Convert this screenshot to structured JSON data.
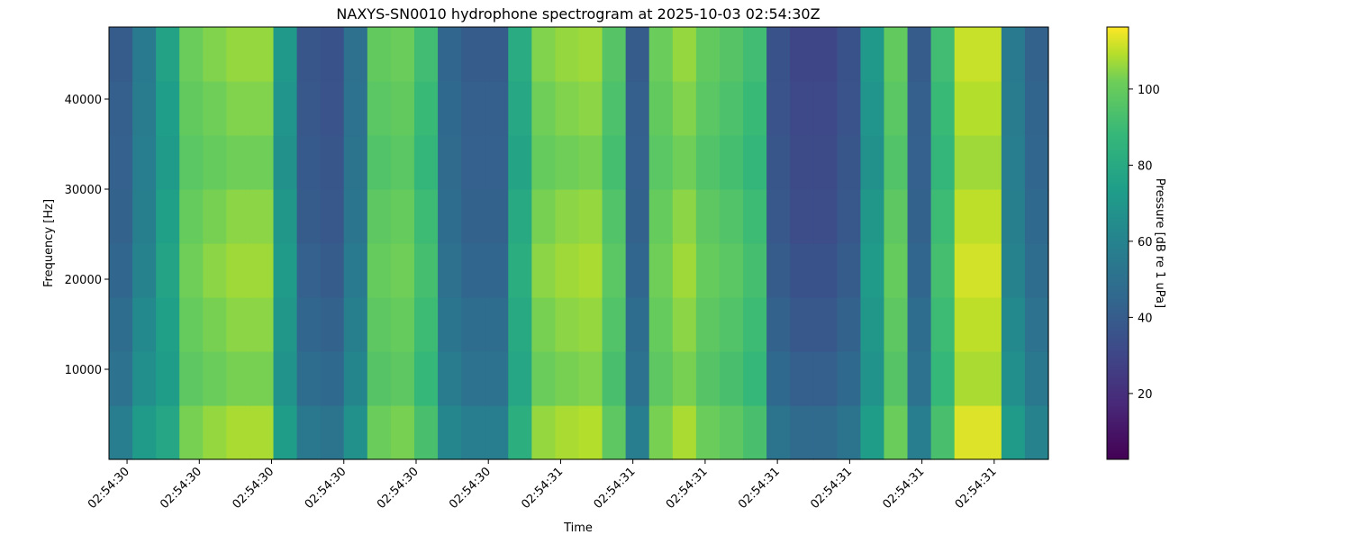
{
  "chart_data": {
    "type": "heatmap",
    "title": "NAXYS-SN0010 hydrophone spectrogram at 2025-10-03 02:54:30Z",
    "xlabel": "Time",
    "ylabel": "Frequency [Hz]",
    "colorbar_label": "Pressure [dB re 1 uPa]",
    "colormap": "viridis",
    "x": [
      30.425,
      30.4575,
      30.49,
      30.5225,
      30.555,
      30.5875,
      30.62,
      30.6525,
      30.685,
      30.7175,
      30.75,
      30.7825,
      30.815,
      30.8475,
      30.88,
      30.9125,
      30.945,
      30.9775,
      31.01,
      31.0425,
      31.075,
      31.1075,
      31.14,
      31.1725,
      31.205,
      31.2375,
      31.27,
      31.3025,
      31.335,
      31.3675,
      31.4,
      31.4325,
      31.465,
      31.4975,
      31.53,
      31.5625,
      31.595,
      31.6275,
      31.66,
      31.6925,
      31.725
    ],
    "y": [
      0,
      6000,
      12000,
      18000,
      24000,
      30000,
      36000,
      42000,
      48000
    ],
    "z": [
      [
        57,
        72,
        78,
        103,
        106,
        108,
        108,
        73,
        54,
        52,
        67,
        101,
        103,
        93,
        62,
        57,
        57,
        83,
        106,
        108,
        109,
        98,
        57,
        103,
        108,
        101,
        98,
        93,
        52,
        47,
        47,
        52,
        73,
        101,
        57,
        93,
        113,
        113,
        72,
        60
      ],
      [
        51,
        66,
        73,
        98,
        101,
        103,
        103,
        68,
        48,
        46,
        61,
        96,
        98,
        88,
        56,
        51,
        51,
        78,
        101,
        103,
        104,
        93,
        51,
        98,
        103,
        96,
        93,
        88,
        46,
        41,
        41,
        46,
        68,
        96,
        51,
        88,
        108,
        108,
        66,
        54
      ],
      [
        48,
        63,
        75,
        100,
        103,
        105,
        105,
        70,
        45,
        43,
        58,
        98,
        100,
        90,
        53,
        48,
        48,
        80,
        103,
        105,
        106,
        95,
        48,
        100,
        105,
        98,
        95,
        90,
        43,
        38,
        38,
        43,
        70,
        98,
        48,
        90,
        110,
        110,
        63,
        51
      ],
      [
        45,
        60,
        77,
        102,
        105,
        107,
        107,
        72,
        42,
        40,
        55,
        100,
        102,
        92,
        50,
        45,
        45,
        82,
        105,
        107,
        108,
        97,
        45,
        102,
        107,
        100,
        97,
        92,
        40,
        35,
        35,
        40,
        72,
        100,
        45,
        92,
        112,
        112,
        60,
        48
      ],
      [
        43,
        58,
        75,
        100,
        103,
        105,
        105,
        70,
        40,
        38,
        53,
        98,
        100,
        90,
        48,
        43,
        43,
        80,
        103,
        105,
        106,
        95,
        43,
        100,
        105,
        98,
        95,
        90,
        38,
        33,
        33,
        38,
        70,
        98,
        43,
        90,
        110,
        110,
        58,
        46
      ],
      [
        42,
        57,
        72,
        97,
        100,
        102,
        102,
        67,
        39,
        37,
        52,
        95,
        97,
        87,
        47,
        42,
        42,
        77,
        100,
        102,
        103,
        92,
        42,
        97,
        102,
        95,
        92,
        87,
        37,
        32,
        32,
        37,
        67,
        95,
        42,
        87,
        107,
        107,
        57,
        45
      ],
      [
        41,
        56,
        74,
        99,
        102,
        104,
        104,
        69,
        38,
        36,
        51,
        97,
        99,
        89,
        46,
        41,
        41,
        79,
        102,
        104,
        105,
        94,
        41,
        99,
        104,
        97,
        94,
        89,
        36,
        31,
        31,
        36,
        69,
        97,
        41,
        89,
        109,
        109,
        56,
        44
      ],
      [
        40,
        55,
        76,
        101,
        104,
        106,
        106,
        71,
        37,
        35,
        50,
        99,
        101,
        91,
        45,
        40,
        40,
        81,
        104,
        106,
        107,
        96,
        40,
        101,
        106,
        99,
        96,
        91,
        35,
        30,
        30,
        35,
        71,
        99,
        40,
        91,
        111,
        111,
        55,
        43
      ]
    ],
    "xlim": [
      30.425,
      31.725
    ],
    "xticks": [
      {
        "value": 30.45,
        "label": "02:54:30"
      },
      {
        "value": 30.55,
        "label": "02:54:30"
      },
      {
        "value": 30.65,
        "label": "02:54:30"
      },
      {
        "value": 30.75,
        "label": "02:54:30"
      },
      {
        "value": 30.85,
        "label": "02:54:30"
      },
      {
        "value": 30.95,
        "label": "02:54:30"
      },
      {
        "value": 31.05,
        "label": "02:54:31"
      },
      {
        "value": 31.15,
        "label": "02:54:31"
      },
      {
        "value": 31.25,
        "label": "02:54:31"
      },
      {
        "value": 31.35,
        "label": "02:54:31"
      },
      {
        "value": 31.45,
        "label": "02:54:31"
      },
      {
        "value": 31.55,
        "label": "02:54:31"
      },
      {
        "value": 31.65,
        "label": "02:54:31"
      }
    ],
    "ylim": [
      0,
      48000
    ],
    "yticks": [
      10000,
      20000,
      30000,
      40000
    ],
    "clim": [
      2.7,
      116.3
    ],
    "cticks": [
      20,
      40,
      60,
      80,
      100
    ]
  }
}
